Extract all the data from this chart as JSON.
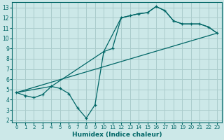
{
  "xlabel": "Humidex (Indice chaleur)",
  "bg_color": "#cce8e8",
  "grid_color": "#aacccc",
  "line_color": "#006666",
  "xlim": [
    -0.5,
    23.5
  ],
  "ylim": [
    1.8,
    13.5
  ],
  "xticks": [
    0,
    1,
    2,
    3,
    4,
    5,
    6,
    7,
    8,
    9,
    10,
    11,
    12,
    13,
    14,
    15,
    16,
    17,
    18,
    19,
    20,
    21,
    22,
    23
  ],
  "yticks": [
    2,
    3,
    4,
    5,
    6,
    7,
    8,
    9,
    10,
    11,
    12,
    13
  ],
  "line1_x": [
    0,
    1,
    2,
    3,
    4,
    5,
    6,
    7,
    8,
    9,
    10,
    11,
    12,
    13,
    14,
    15,
    16,
    17,
    18,
    19,
    20,
    21,
    22,
    23
  ],
  "line1_y": [
    4.7,
    4.4,
    4.2,
    4.5,
    5.3,
    5.1,
    4.6,
    3.2,
    2.2,
    3.5,
    8.7,
    9.0,
    12.0,
    12.2,
    12.4,
    12.5,
    13.1,
    12.7,
    11.7,
    11.4,
    11.4,
    11.4,
    11.1,
    10.5
  ],
  "line2_x": [
    0,
    4,
    10,
    12,
    14,
    15,
    16,
    17,
    18,
    19,
    20,
    21,
    22,
    23
  ],
  "line2_y": [
    4.7,
    5.3,
    8.7,
    12.0,
    12.4,
    12.5,
    13.1,
    12.7,
    11.7,
    11.4,
    11.4,
    11.4,
    11.1,
    10.5
  ],
  "line3_x": [
    0,
    23
  ],
  "line3_y": [
    4.7,
    10.5
  ]
}
